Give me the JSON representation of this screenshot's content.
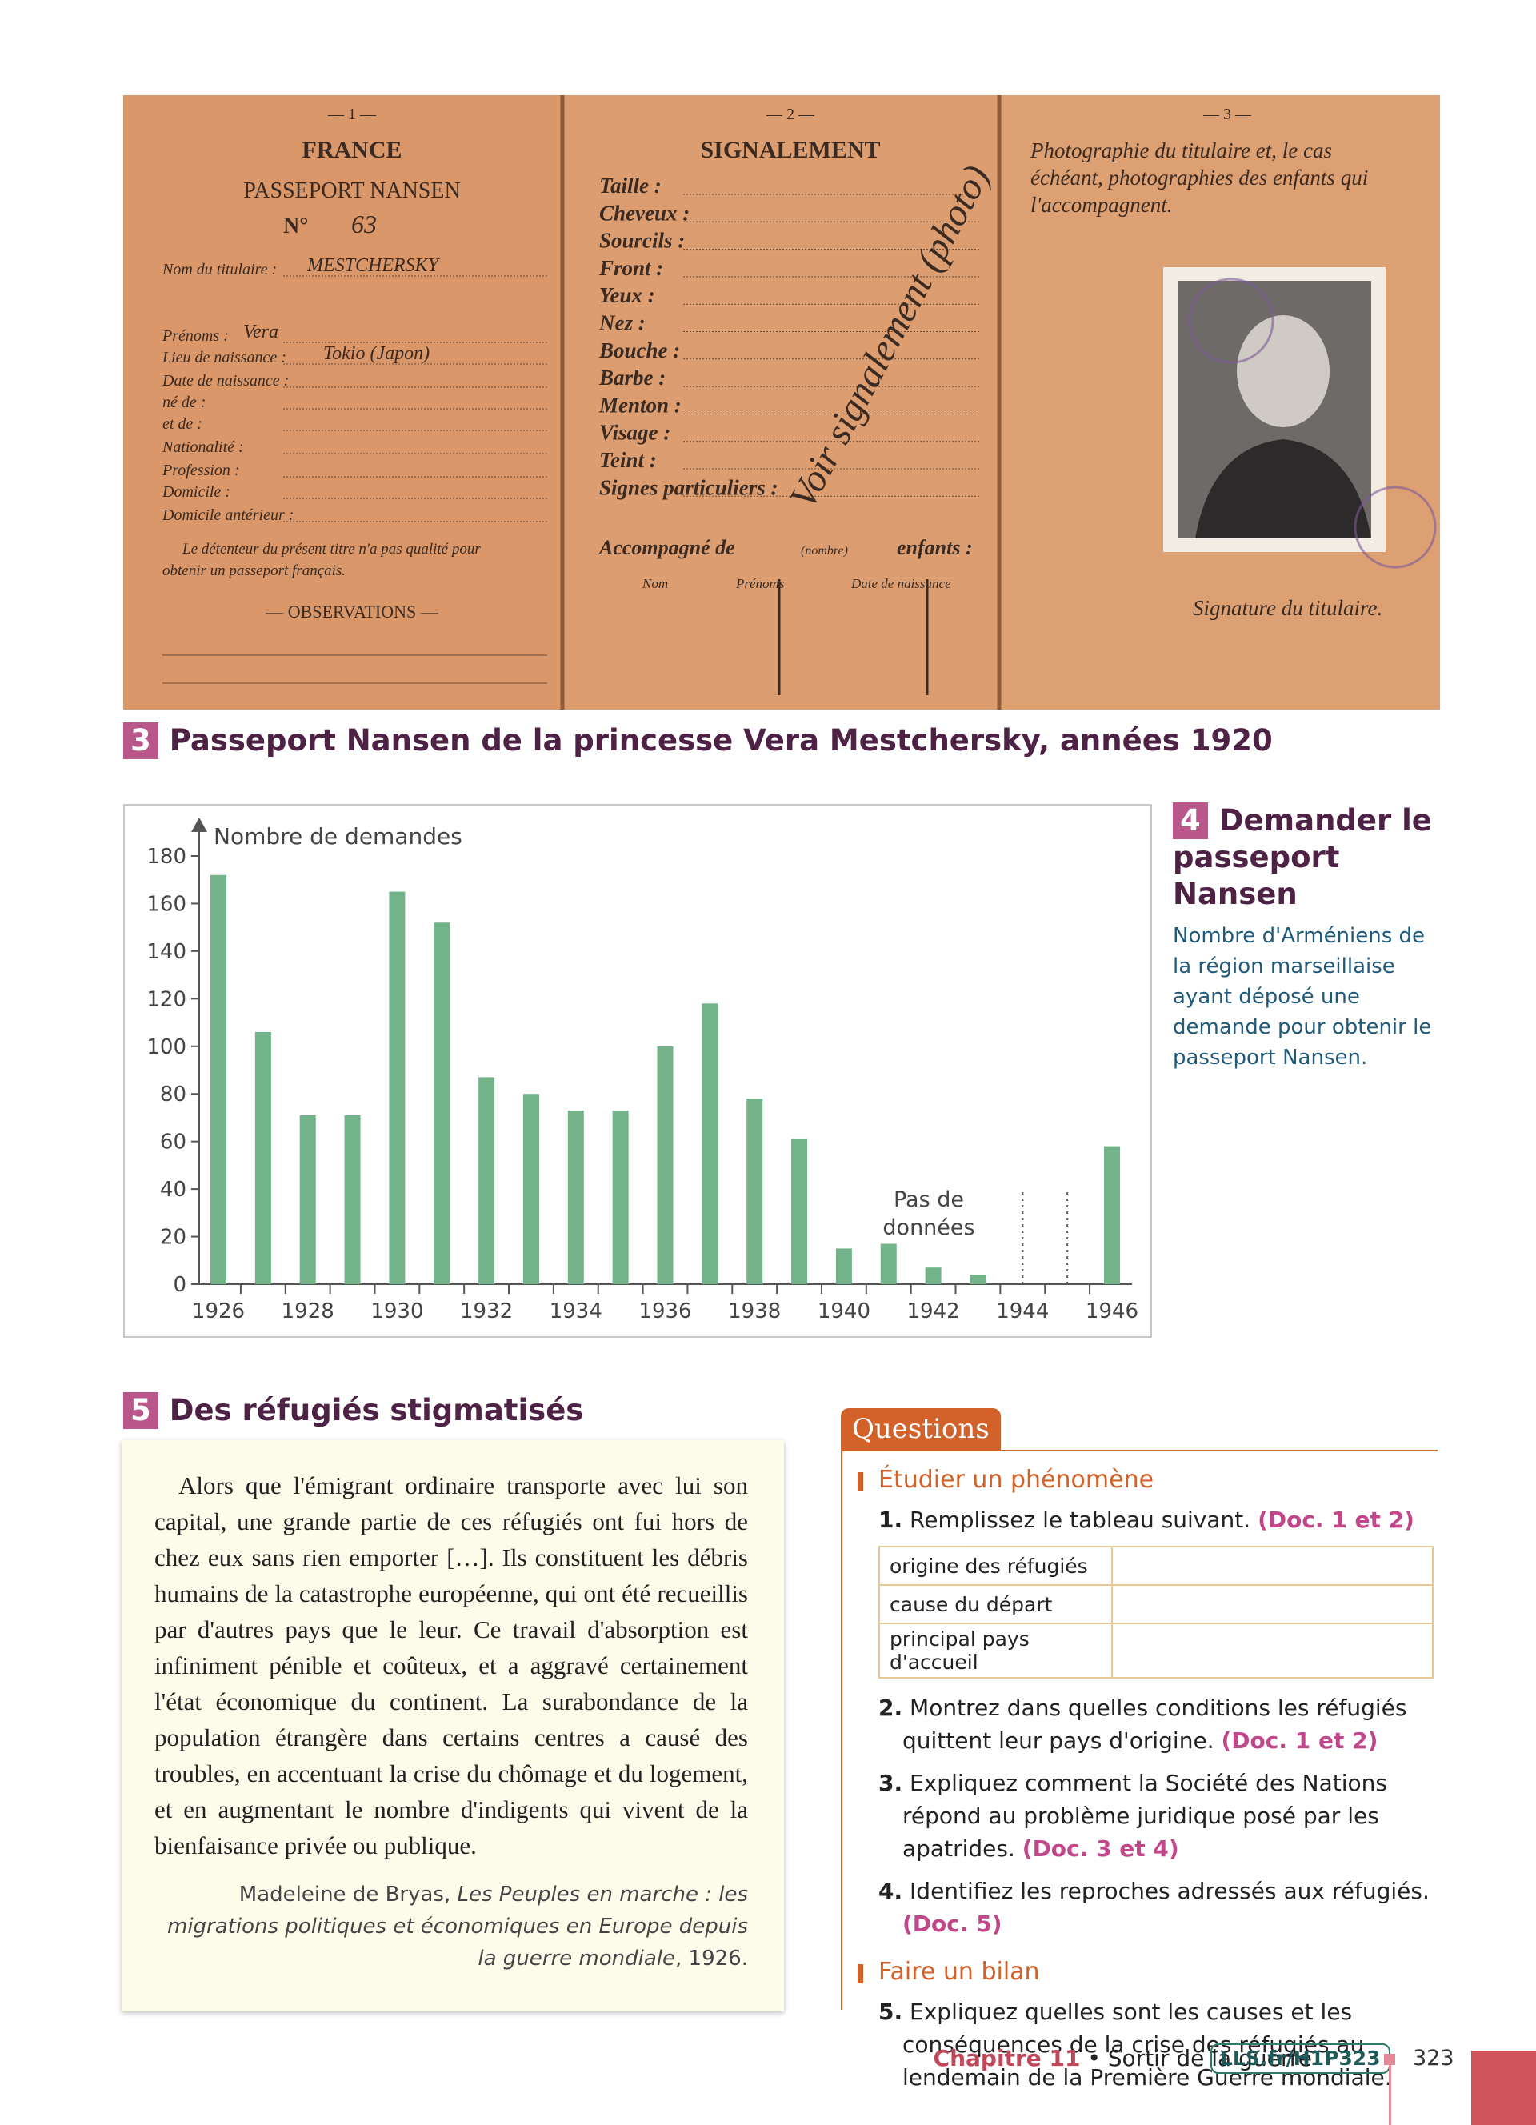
{
  "doc3": {
    "number": "3",
    "title": "Passeport Nansen de la princesse Vera Mestchersky, années 1920",
    "passport": {
      "page1": {
        "number": "— 1 —",
        "country": "FRANCE",
        "title": "PASSEPORT NANSEN",
        "no_label": "N°",
        "no": "63",
        "fields": [
          "Nom du titulaire :",
          "Prénoms :",
          "Lieu de naissance :",
          "Date de naissance :",
          "né de :",
          "et de :",
          "Nationalité :",
          "Profession :",
          "Domicile :",
          "Domicile antérieur :"
        ],
        "handwritten": [
          "MESTCHERSKY",
          "Vera",
          "Tokio (Japon)"
        ],
        "notice": [
          "Le détenteur du présent titre n'a pas qualité pour",
          "obtenir un passeport français."
        ],
        "observations": "— OBSERVATIONS —"
      },
      "page2": {
        "number": "— 2 —",
        "title": "SIGNALEMENT",
        "fields": [
          "Taille :",
          "Cheveux :",
          "Sourcils :",
          "Front :",
          "Yeux :",
          "Nez :",
          "Bouche :",
          "Barbe :",
          "Menton :",
          "Visage :",
          "Teint :",
          "Signes particuliers :"
        ],
        "handwritten": "Voir signalement (photo)",
        "accompanied": "Accompagné de",
        "count": "(nombre)",
        "children": "enfants :",
        "columns": [
          "Nom",
          "Prénoms",
          "Date de naissance"
        ]
      },
      "page3": {
        "number": "— 3 —",
        "caption": [
          "Photographie du titulaire et, le cas",
          "échéant, photographies des enfants qui",
          "l'accompagnent."
        ],
        "signature": "Signature du titulaire."
      }
    }
  },
  "doc4": {
    "number": "4",
    "title": "Demander le passeport Nansen",
    "caption": "Nombre d'Arméniens de la région marseillaise ayant déposé une demande pour obtenir le passeport Nansen."
  },
  "chart_data": {
    "type": "bar",
    "y_label": "Nombre de demandes",
    "categories": [
      "1926",
      null,
      "1928",
      null,
      "1930",
      null,
      "1932",
      null,
      "1934",
      null,
      "1936",
      null,
      "1938",
      null,
      "1940",
      null,
      "1942",
      null,
      "1944",
      null,
      "1946"
    ],
    "values": [
      172,
      106,
      71,
      71,
      165,
      152,
      87,
      80,
      73,
      73,
      100,
      118,
      78,
      61,
      15,
      17,
      7,
      4,
      null,
      null,
      58
    ],
    "color": "#72b38a",
    "ylim": [
      0,
      180
    ],
    "yticks": [
      0,
      20,
      40,
      60,
      80,
      100,
      120,
      140,
      160,
      180
    ],
    "annotation": "Pas de données"
  },
  "doc5": {
    "number": "5",
    "title": "Des réfugiés stigmatisés",
    "text": "Alors que l'émigrant ordinaire transporte avec lui son capital, une grande partie de ces réfugiés ont fui hors de chez eux sans rien emporter […]. Ils constituent les débris humains de la catastrophe européenne, qui ont été recueillis par d'autres pays que le leur. Ce travail d'absorption est infiniment pénible et coûteux, et a aggravé certainement l'état économique du continent. La surabondance de la population étrangère dans certains centres a causé des troubles, en accentuant la crise du chômage et du logement, et en augmentant le nombre d'indigents qui vivent de la bienfaisance privée ou publique.",
    "source_author": "Madeleine de Bryas, ",
    "source_title": "Les Peuples en marche : les migrations politiques et économiques en Europe depuis la guerre mondiale",
    "source_year": ", 1926."
  },
  "questions": {
    "header": "Questions",
    "sections": [
      {
        "title": "Étudier un phénomène",
        "items": [
          {
            "number": "1.",
            "text": "Remplissez le tableau suivant.",
            "ref": "(Doc. 1 et 2)",
            "table": [
              "origine des réfugiés",
              "cause du départ",
              "principal pays d'accueil"
            ]
          },
          {
            "number": "2.",
            "text": "Montrez dans quelles conditions les réfugiés quittent leur pays d'origine.",
            "ref": "(Doc. 1 et 2)"
          },
          {
            "number": "3.",
            "text": "Expliquez comment la Société des Nations répond au problème juridique posé par les apatrides.",
            "ref": "(Doc. 3 et 4)"
          },
          {
            "number": "4.",
            "text": "Identifiez les reproches adressés aux réfugiés.",
            "ref": "(Doc. 5)"
          }
        ]
      },
      {
        "title": "Faire un bilan",
        "items": [
          {
            "number": "5.",
            "text": "Expliquez quelles sont les causes et les conséquences de la crise des réfugiés au lendemain de la Première Guerre mondiale."
          }
        ]
      }
    ]
  },
  "footer": {
    "chapter": "Chapitre 11",
    "chapter_title": " • Sortir de la guerre",
    "link": "LLS.fr/H1P323",
    "page": "323"
  }
}
